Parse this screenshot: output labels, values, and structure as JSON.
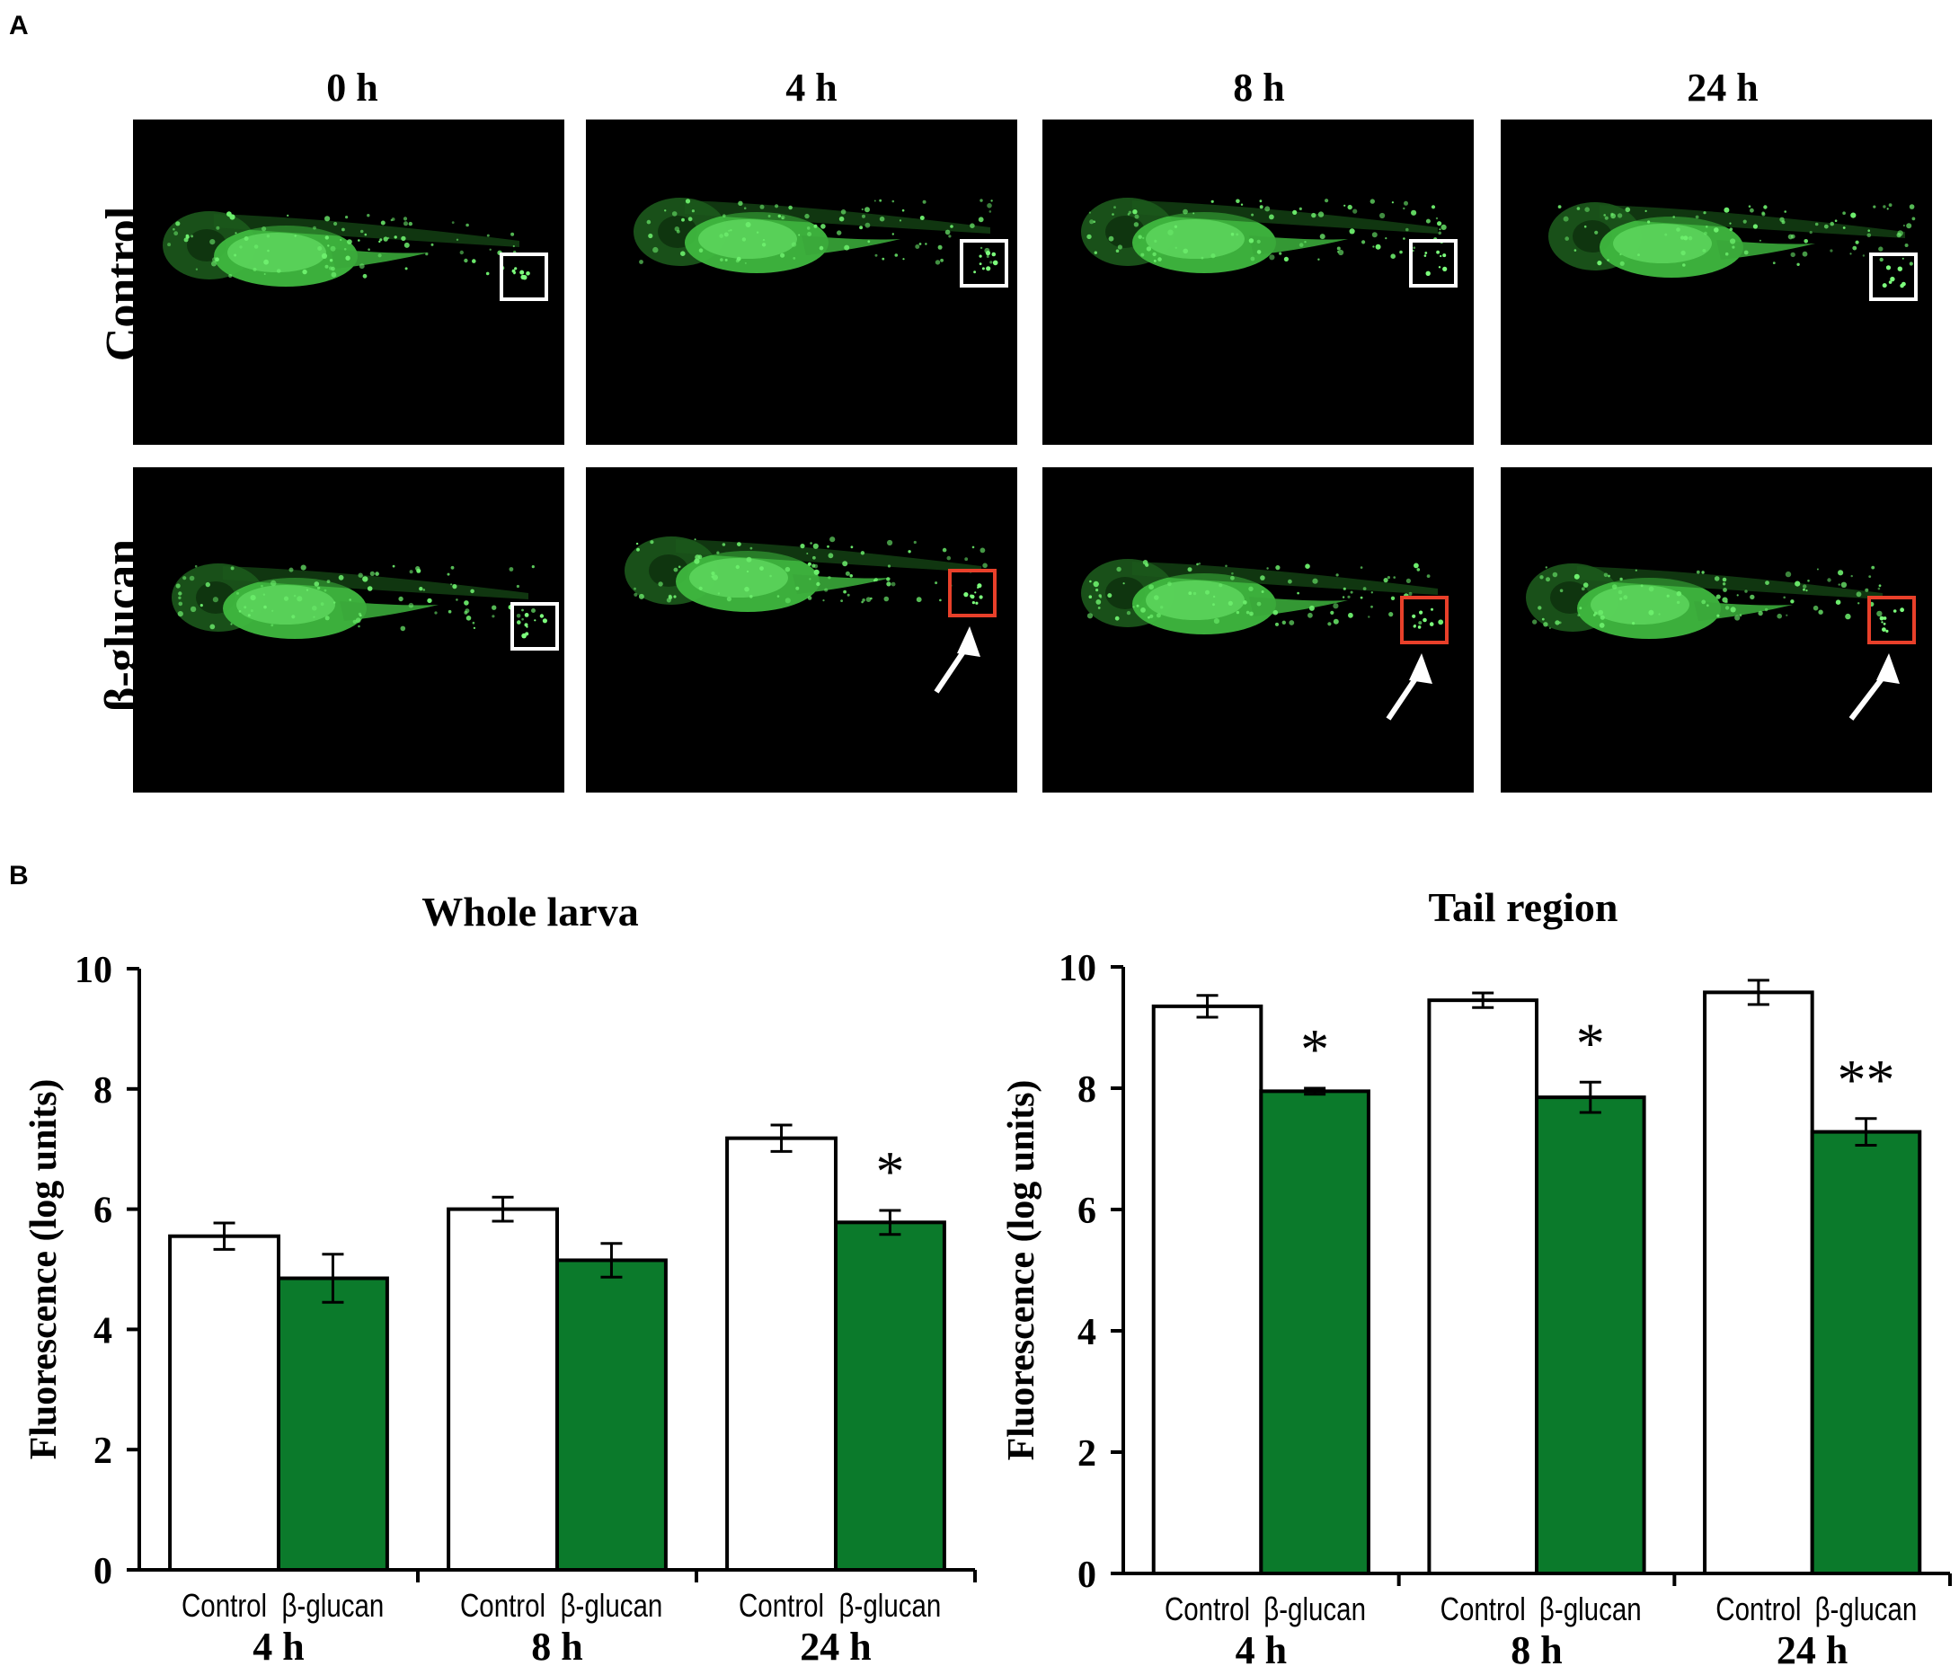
{
  "panel_a": {
    "letter": "A",
    "time_labels": [
      "0 h",
      "4 h",
      "8 h",
      "24 h"
    ],
    "row_labels": [
      "Control",
      "β-glucan"
    ],
    "images": [
      {
        "row": 0,
        "col": 0,
        "box_color": "#ffffff",
        "arrow": false
      },
      {
        "row": 0,
        "col": 1,
        "box_color": "#ffffff",
        "arrow": false
      },
      {
        "row": 0,
        "col": 2,
        "box_color": "#ffffff",
        "arrow": false
      },
      {
        "row": 0,
        "col": 3,
        "box_color": "#ffffff",
        "arrow": false
      },
      {
        "row": 1,
        "col": 0,
        "box_color": "#ffffff",
        "arrow": false
      },
      {
        "row": 1,
        "col": 1,
        "box_color": "#e8402a",
        "arrow": true
      },
      {
        "row": 1,
        "col": 2,
        "box_color": "#e8402a",
        "arrow": true
      },
      {
        "row": 1,
        "col": 3,
        "box_color": "#e8402a",
        "arrow": true
      }
    ]
  },
  "panel_b": {
    "letter": "B"
  },
  "chart_data": [
    {
      "type": "bar",
      "title": "Whole larva",
      "ylabel": "Fluorescence (log units)",
      "xlabel": "",
      "ylim": [
        0,
        10
      ],
      "yticks": [
        0,
        2,
        4,
        6,
        8,
        10
      ],
      "groups": [
        "4 h",
        "8 h",
        "24 h"
      ],
      "bar_labels": [
        "Control",
        "β-glucan"
      ],
      "series": [
        {
          "name": "Control",
          "color": "#ffffff",
          "values": [
            5.55,
            6.0,
            7.18
          ],
          "errors": [
            0.22,
            0.2,
            0.22
          ]
        },
        {
          "name": "β-glucan",
          "color": "#0b7a2b",
          "values": [
            4.85,
            5.15,
            5.78
          ],
          "errors": [
            0.4,
            0.28,
            0.2
          ]
        }
      ],
      "annotations": [
        {
          "group": 2,
          "series": 1,
          "text": "*"
        }
      ]
    },
    {
      "type": "bar",
      "title": "Tail region",
      "ylabel": "Fluorescence (log units)",
      "xlabel": "",
      "ylim": [
        0,
        10
      ],
      "yticks": [
        0,
        2,
        4,
        6,
        8,
        10
      ],
      "groups": [
        "4 h",
        "8 h",
        "24 h"
      ],
      "bar_labels": [
        "Control",
        "β-glucan"
      ],
      "series": [
        {
          "name": "Control",
          "color": "#ffffff",
          "values": [
            9.35,
            9.45,
            9.58
          ],
          "errors": [
            0.18,
            0.12,
            0.2
          ]
        },
        {
          "name": "β-glucan",
          "color": "#0b7a2b",
          "values": [
            7.95,
            7.85,
            7.28
          ],
          "errors": [
            0.05,
            0.25,
            0.22
          ]
        }
      ],
      "annotations": [
        {
          "group": 0,
          "series": 1,
          "text": "*"
        },
        {
          "group": 1,
          "series": 1,
          "text": "*"
        },
        {
          "group": 2,
          "series": 1,
          "text": "**"
        }
      ]
    }
  ]
}
